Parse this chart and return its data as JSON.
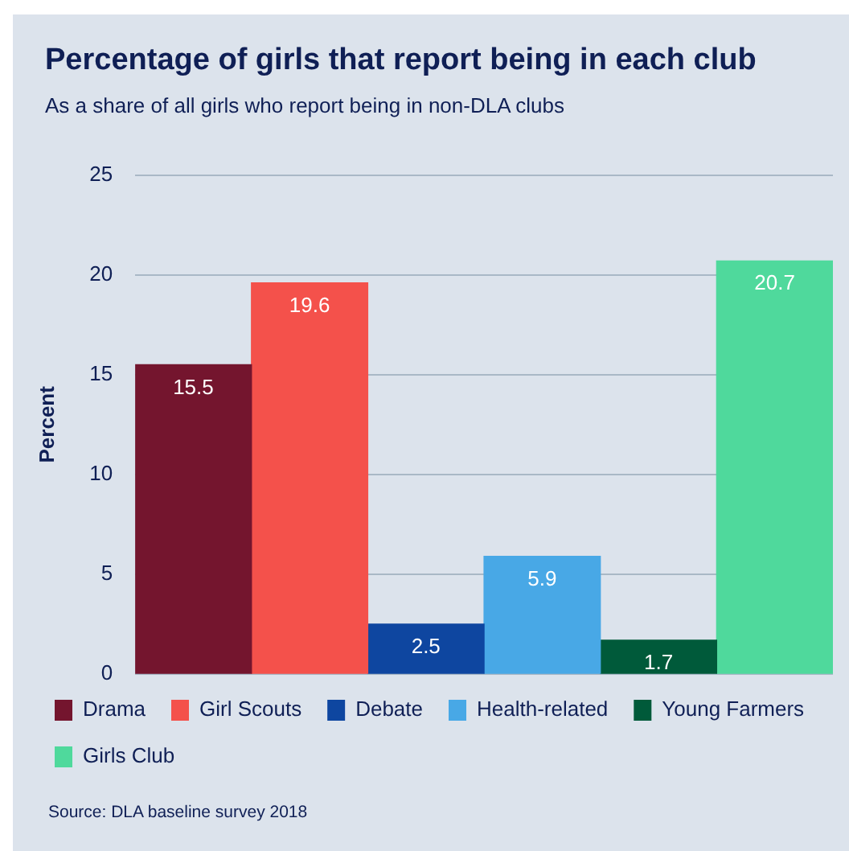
{
  "chart_data": {
    "type": "bar",
    "title": "Percentage of girls that report being in each club",
    "subtitle": "As a share of all girls who report being in non-DLA clubs",
    "ylabel": "Percent",
    "annotations": [
      "Source: DLA baseline survey 2018"
    ],
    "categories": [
      null
    ],
    "series": [
      {
        "name": "Drama",
        "color": "#74152e",
        "values": [
          15.5
        ]
      },
      {
        "name": "Girl Scouts",
        "color": "#f4514b",
        "values": [
          19.6
        ]
      },
      {
        "name": "Debate",
        "color": "#0e46a0",
        "values": [
          2.5
        ]
      },
      {
        "name": "Health-related",
        "color": "#48a8e6",
        "values": [
          5.9
        ]
      },
      {
        "name": "Young Farmers",
        "color": "#005a3a",
        "values": [
          1.7
        ]
      },
      {
        "name": "Girls Club",
        "color": "#4fd99c",
        "values": [
          20.7
        ]
      }
    ],
    "ylim": [
      0,
      25
    ],
    "yticks": [
      0,
      5,
      10,
      15,
      20,
      25
    ],
    "grid": "y",
    "legend": "bottom",
    "data_labels": true
  }
}
